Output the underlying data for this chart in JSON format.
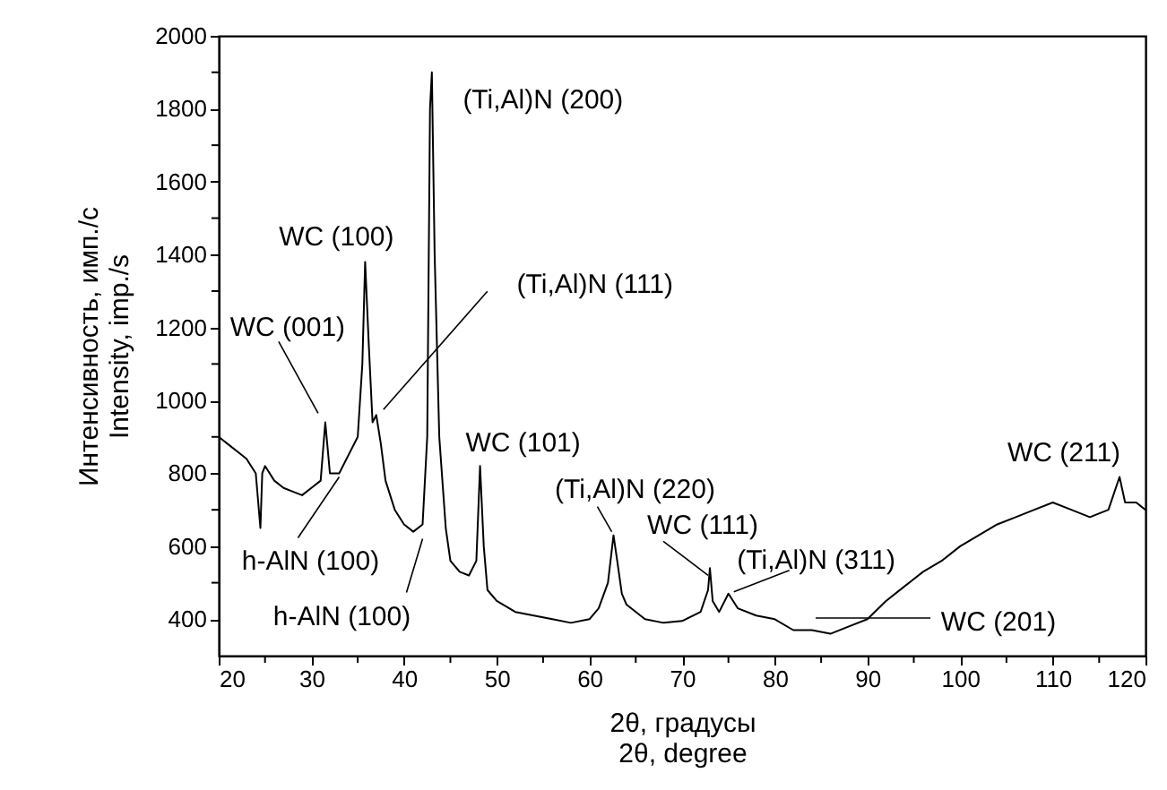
{
  "chart_data": {
    "type": "line",
    "xlabel": "2θ, градусы\n2θ, degree",
    "ylabel": "Интенсивность, имп./с\nIntensity, imp./s",
    "xlim": [
      20,
      120
    ],
    "ylim": [
      300,
      2000
    ],
    "xticks": [
      20,
      {
        "value": 25,
        "label": null
      },
      30,
      {
        "value": 35,
        "label": null
      },
      40,
      {
        "value": 45,
        "label": null
      },
      50,
      {
        "value": 55,
        "label": null
      },
      60,
      {
        "value": 65,
        "label": null
      },
      70,
      {
        "value": 75,
        "label": null
      },
      80,
      {
        "value": 85,
        "label": null
      },
      90,
      {
        "value": 95,
        "label": null
      },
      100,
      {
        "value": 105,
        "label": null
      },
      110,
      {
        "value": 115,
        "label": null
      },
      120
    ],
    "yticks": [
      400,
      {
        "value": 500,
        "label": null
      },
      600,
      {
        "value": 700,
        "label": null
      },
      800,
      {
        "value": 900,
        "label": null
      },
      1000,
      {
        "value": 1100,
        "label": null
      },
      1200,
      {
        "value": 1300,
        "label": null
      },
      1400,
      {
        "value": 1500,
        "label": null
      },
      1600,
      {
        "value": 1700,
        "label": null
      },
      1800,
      {
        "value": 1900,
        "label": null
      },
      2000
    ],
    "grid": false,
    "marker": "none",
    "line_style": "solid",
    "series": [
      {
        "color": "#000000",
        "x": [
          20,
          21,
          22,
          23,
          24,
          24.5,
          24.7,
          25,
          26,
          27,
          28,
          29,
          30,
          31,
          31.5,
          32,
          33,
          34,
          35,
          35.5,
          35.8,
          36.2,
          36.6,
          37,
          37.5,
          38,
          39,
          40,
          41,
          42,
          42.5,
          42.8,
          43,
          43.3,
          43.8,
          44.5,
          45,
          46,
          47,
          47.8,
          48.2,
          48.6,
          49,
          50,
          52,
          54,
          56,
          58,
          60,
          61,
          62,
          62.6,
          63,
          63.5,
          64,
          66,
          68,
          70,
          72,
          72.8,
          73,
          73.3,
          74,
          75,
          76,
          78,
          80,
          82,
          84,
          86,
          88,
          90,
          92,
          94,
          96,
          98,
          100,
          102,
          104,
          106,
          108,
          110,
          112,
          114,
          116,
          117.2,
          117.8,
          119,
          120
        ],
        "values": [
          900,
          880,
          860,
          840,
          800,
          650,
          800,
          820,
          780,
          760,
          750,
          740,
          760,
          780,
          940,
          800,
          800,
          850,
          900,
          1100,
          1380,
          1150,
          940,
          960,
          880,
          780,
          700,
          660,
          640,
          660,
          900,
          1800,
          1900,
          1400,
          900,
          650,
          560,
          530,
          520,
          560,
          820,
          600,
          480,
          450,
          420,
          410,
          400,
          390,
          400,
          430,
          500,
          630,
          560,
          470,
          440,
          400,
          390,
          395,
          420,
          480,
          540,
          450,
          420,
          470,
          430,
          410,
          400,
          370,
          370,
          360,
          380,
          400,
          450,
          490,
          530,
          560,
          600,
          630,
          660,
          680,
          700,
          720,
          700,
          680,
          700,
          790,
          720,
          720,
          700
        ]
      }
    ],
    "annotations": [
      {
        "text": "WC (001)",
        "x": 31.5,
        "y": 940
      },
      {
        "text": "WC (100)",
        "x": 35.8,
        "y": 1380
      },
      {
        "text": "(Ti,Al)N (200)",
        "x": 43,
        "y": 1900
      },
      {
        "text": "(Ti,Al)N (111)",
        "x": 37,
        "y": 960
      },
      {
        "text": "h-AlN (100)",
        "x": 33,
        "y": 800
      },
      {
        "text": "h-AlN (100)",
        "x": 42,
        "y": 640
      },
      {
        "text": "WC (101)",
        "x": 48.2,
        "y": 820
      },
      {
        "text": "(Ti,Al)N (220)",
        "x": 62.6,
        "y": 630
      },
      {
        "text": "WC (111)",
        "x": 73,
        "y": 540
      },
      {
        "text": "(Ti,Al)N (311)",
        "x": 75,
        "y": 470
      },
      "WC (201)",
      {
        "text": "WC (211)",
        "x": 117.2,
        "y": 790
      }
    ]
  }
}
